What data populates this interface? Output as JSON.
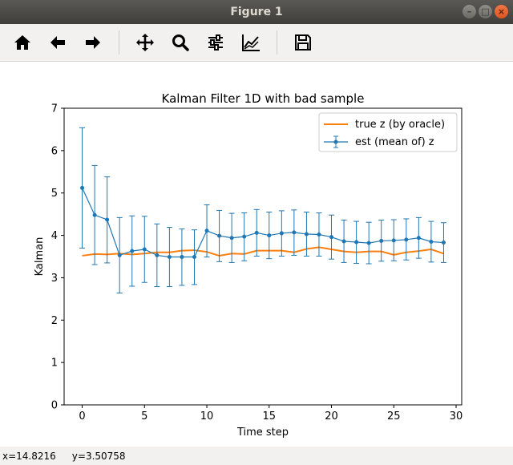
{
  "window": {
    "title": "Figure 1",
    "controls": [
      "minimize",
      "maximize",
      "close"
    ]
  },
  "toolbar": {
    "items": [
      {
        "name": "home-button",
        "icon": "home-icon"
      },
      {
        "name": "back-button",
        "icon": "arrow-left-icon"
      },
      {
        "name": "forward-button",
        "icon": "arrow-right-icon"
      },
      {
        "name": "pan-button",
        "icon": "move-icon"
      },
      {
        "name": "zoom-button",
        "icon": "magnifier-icon"
      },
      {
        "name": "configure-subplots-button",
        "icon": "sliders-icon"
      },
      {
        "name": "edit-axes-button",
        "icon": "line-chart-icon"
      },
      {
        "name": "save-button",
        "icon": "floppy-disk-icon"
      }
    ]
  },
  "status": {
    "x": "x=14.8216",
    "y": "y=3.50758"
  },
  "chart_data": {
    "type": "line",
    "title": "Kalman Filter 1D with bad sample",
    "xlabel": "Time step",
    "ylabel": "Kalman",
    "xlim": [
      -1.45,
      30.45
    ],
    "ylim": [
      0,
      7
    ],
    "xticks": [
      0,
      5,
      10,
      15,
      20,
      25,
      30
    ],
    "yticks": [
      0,
      1,
      2,
      3,
      4,
      5,
      6,
      7
    ],
    "legend_position": "top-right",
    "x": [
      0,
      1,
      2,
      3,
      4,
      5,
      6,
      7,
      8,
      9,
      10,
      11,
      12,
      13,
      14,
      15,
      16,
      17,
      18,
      19,
      20,
      21,
      22,
      23,
      24,
      25,
      26,
      27,
      28,
      29
    ],
    "series": [
      {
        "name": "true z (by oracle)",
        "color": "#ff7f0e",
        "values": [
          3.52,
          3.56,
          3.55,
          3.57,
          3.55,
          3.57,
          3.6,
          3.6,
          3.64,
          3.65,
          3.61,
          3.52,
          3.57,
          3.56,
          3.64,
          3.64,
          3.64,
          3.6,
          3.68,
          3.72,
          3.67,
          3.62,
          3.6,
          3.62,
          3.62,
          3.54,
          3.6,
          3.63,
          3.67,
          3.57
        ]
      },
      {
        "name": "est (mean of) z",
        "color": "#1f77b4",
        "values": [
          5.12,
          4.48,
          4.37,
          3.53,
          3.63,
          3.67,
          3.53,
          3.49,
          3.49,
          3.49,
          4.11,
          3.99,
          3.94,
          3.97,
          4.06,
          4.0,
          4.05,
          4.07,
          4.03,
          4.02,
          3.96,
          3.86,
          3.84,
          3.82,
          3.87,
          3.88,
          3.9,
          3.94,
          3.85,
          3.83
        ],
        "err_low": [
          3.7,
          3.31,
          3.35,
          2.64,
          2.8,
          2.89,
          2.79,
          2.79,
          2.82,
          2.84,
          3.49,
          3.38,
          3.36,
          3.4,
          3.51,
          3.45,
          3.51,
          3.53,
          3.51,
          3.51,
          3.44,
          3.36,
          3.34,
          3.33,
          3.39,
          3.4,
          3.42,
          3.46,
          3.37,
          3.36
        ],
        "err_high": [
          6.54,
          5.65,
          5.38,
          4.42,
          4.46,
          4.45,
          4.27,
          4.19,
          4.15,
          4.13,
          4.72,
          4.59,
          4.52,
          4.53,
          4.61,
          4.55,
          4.58,
          4.6,
          4.55,
          4.53,
          4.48,
          4.36,
          4.33,
          4.31,
          4.36,
          4.37,
          4.39,
          4.42,
          4.33,
          4.3
        ]
      }
    ]
  }
}
